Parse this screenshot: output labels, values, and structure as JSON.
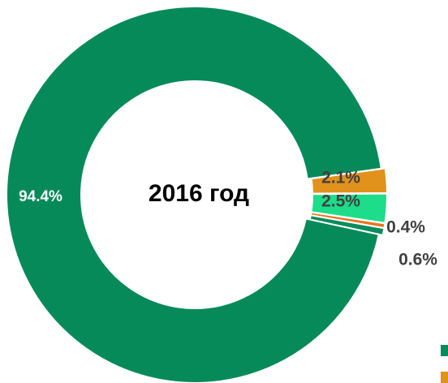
{
  "chart_data": {
    "type": "donut",
    "title": "2016 год",
    "categories": [
      null,
      null,
      null,
      null,
      null
    ],
    "values": [
      2.1,
      2.5,
      0.4,
      0.6,
      94.4
    ],
    "value_labels": [
      "2.1%",
      "2.5%",
      "0.4%",
      "0.6%",
      "94.4%"
    ],
    "colors": [
      "#e0921c",
      "#1ddc8a",
      "#e8751e",
      "#0a8c5c",
      "#068a5a"
    ]
  }
}
